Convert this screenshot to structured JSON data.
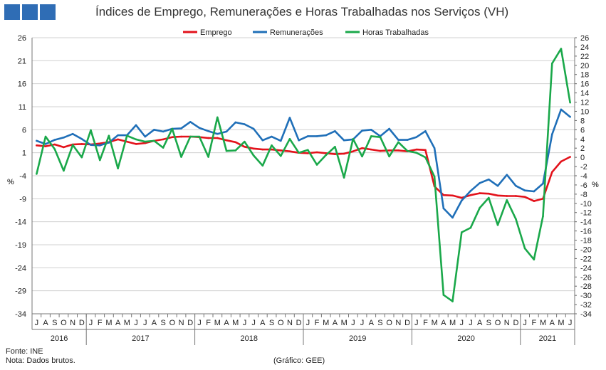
{
  "header": {
    "title": "Índices de Emprego, Remunerações e Horas Trabalhadas nos Serviços (VH)",
    "logo_color": "#2f6db5"
  },
  "footer": {
    "source": "Fonte: INE",
    "note": "Nota: Dados brutos.",
    "credit": "(Gráfico: GEE)"
  },
  "chart_data": {
    "type": "line",
    "title": "Índices de Emprego, Remunerações e Horas Trabalhadas nos Serviços (VH)",
    "ylabel_left": "%",
    "ylabel_right": "%",
    "left_axis": {
      "min": -34,
      "max": 26,
      "ticks": [
        26,
        21,
        16,
        11,
        6,
        1,
        -4,
        -9,
        -14,
        -19,
        -24,
        -29,
        -34
      ]
    },
    "right_axis": {
      "min": -34,
      "max": 26,
      "ticks": [
        26,
        24,
        22,
        20,
        18,
        16,
        14,
        12,
        10,
        8,
        6,
        4,
        2,
        0,
        -2,
        -4,
        -6,
        -8,
        -10,
        -12,
        -14,
        -16,
        -18,
        -20,
        -22,
        -24,
        -26,
        -28,
        -30,
        -32,
        -34
      ]
    },
    "months": [
      "J",
      "A",
      "S",
      "O",
      "N",
      "D",
      "J",
      "F",
      "M",
      "A",
      "M",
      "J",
      "J",
      "A",
      "S",
      "O",
      "N",
      "D",
      "J",
      "F",
      "M",
      "A",
      "M",
      "J",
      "J",
      "A",
      "S",
      "O",
      "N",
      "D",
      "J",
      "F",
      "M",
      "A",
      "M",
      "J",
      "J",
      "A",
      "S",
      "O",
      "N",
      "D",
      "J",
      "F",
      "M",
      "A",
      "M",
      "J",
      "J",
      "A",
      "S",
      "O",
      "N",
      "D",
      "J",
      "F",
      "M",
      "A",
      "M",
      "J"
    ],
    "years": [
      {
        "label": "2016",
        "start": 0,
        "count": 6
      },
      {
        "label": "2017",
        "start": 6,
        "count": 12
      },
      {
        "label": "2018",
        "start": 18,
        "count": 12
      },
      {
        "label": "2019",
        "start": 30,
        "count": 12
      },
      {
        "label": "2020",
        "start": 42,
        "count": 12
      },
      {
        "label": "2021",
        "start": 54,
        "count": 6
      }
    ],
    "series": [
      {
        "name": "Emprego",
        "color": "#e3121b",
        "values": [
          2.6,
          2.4,
          2.8,
          2.2,
          2.8,
          2.9,
          2.8,
          3.0,
          3.3,
          3.9,
          3.4,
          2.9,
          3.1,
          3.6,
          3.9,
          4.4,
          4.5,
          4.5,
          4.4,
          4.2,
          4.2,
          3.7,
          3.3,
          2.3,
          1.9,
          1.7,
          1.7,
          1.5,
          1.3,
          1.0,
          0.9,
          1.1,
          0.9,
          0.7,
          0.8,
          1.3,
          2.0,
          1.7,
          1.4,
          1.5,
          1.5,
          1.3,
          1.7,
          1.6,
          -6.3,
          -8.2,
          -8.3,
          -8.8,
          -8.2,
          -7.8,
          -7.9,
          -8.3,
          -8.4,
          -8.4,
          -8.6,
          -9.5,
          -9.0,
          -3.2,
          -0.9,
          0.1
        ]
      },
      {
        "name": "Remunerações",
        "color": "#1f6fb8",
        "values": [
          3.6,
          2.9,
          3.8,
          4.3,
          5.1,
          4.0,
          2.7,
          2.6,
          3.2,
          4.8,
          4.8,
          7.0,
          4.5,
          6.0,
          5.6,
          6.2,
          6.3,
          7.7,
          6.4,
          5.7,
          5.1,
          5.6,
          7.6,
          7.2,
          6.2,
          3.7,
          4.5,
          3.6,
          8.6,
          3.7,
          4.6,
          4.6,
          4.8,
          5.7,
          3.7,
          3.9,
          5.8,
          6.0,
          4.6,
          6.2,
          3.8,
          3.8,
          4.4,
          5.7,
          2.0,
          -11.1,
          -13.1,
          -9.4,
          -7.3,
          -5.6,
          -4.8,
          -6.2,
          -3.8,
          -6.2,
          -7.2,
          -7.4,
          -5.7,
          5.0,
          10.4,
          8.8
        ]
      },
      {
        "name": "Horas Trabalhadas",
        "color": "#1aa84a",
        "values": [
          -3.6,
          4.5,
          1.8,
          -2.9,
          2.7,
          0.0,
          5.9,
          -0.6,
          4.7,
          -2.4,
          4.7,
          3.9,
          3.4,
          3.6,
          2.1,
          6.2,
          0.1,
          4.5,
          4.5,
          0.1,
          8.7,
          1.4,
          1.5,
          3.4,
          0.4,
          -1.8,
          2.6,
          0.3,
          4.0,
          1.0,
          1.6,
          -1.6,
          0.5,
          2.3,
          -4.4,
          4.0,
          0.2,
          4.6,
          4.4,
          0.2,
          3.3,
          1.4,
          1.0,
          0.0,
          -4.2,
          -29.9,
          -31.3,
          -16.3,
          -15.3,
          -11.0,
          -8.8,
          -14.7,
          -9.3,
          -13.4,
          -19.8,
          -22.2,
          -12.8,
          20.4,
          23.6,
          11.9
        ]
      }
    ]
  }
}
